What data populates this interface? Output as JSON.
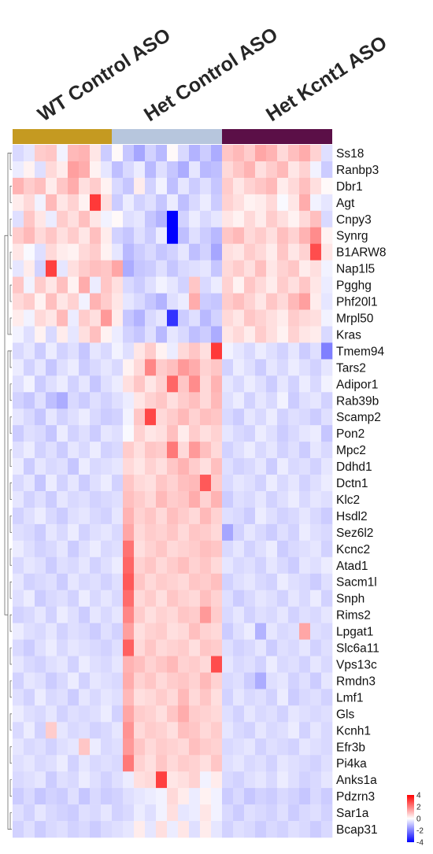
{
  "chart_data": {
    "type": "heatmap",
    "title": "",
    "groups": [
      {
        "name": "WT Control ASO",
        "color": "#c59a21",
        "columns": 9
      },
      {
        "name": "Het Control ASO",
        "color": "#b7c6dd",
        "columns": 10
      },
      {
        "name": "Het Kcnt1 ASO",
        "color": "#5b0f47",
        "columns": 10
      }
    ],
    "genes": [
      "Ss18",
      "Ranbp3",
      "Dbr1",
      "Agt",
      "Cnpy3",
      "Synrg",
      "B1ARW8",
      "Nap1l5",
      "Pgghg",
      "Phf20l1",
      "Mrpl50",
      "Kras",
      "Tmem94",
      "Tars2",
      "Adipor1",
      "Rab39b",
      "Scamp2",
      "Pon2",
      "Mpc2",
      "Ddhd1",
      "Dctn1",
      "Klc2",
      "Hsdl2",
      "Sez6l2",
      "Kcnc2",
      "Atad1",
      "Sacm1l",
      "Snph",
      "Rims2",
      "Lpgat1",
      "Slc6a11",
      "Vps13c",
      "Rmdn3",
      "Lmf1",
      "Gls",
      "Kcnh1",
      "Efr3b",
      "Pi4ka",
      "Anks1a",
      "Pdzrn3",
      "Sar1a",
      "Bcap31"
    ],
    "values": [
      [
        -0.6,
        -0.4,
        0.8,
        0.9,
        -0.2,
        1.1,
        1.2,
        0.4,
        -0.8,
        0.1,
        -0.9,
        -1.4,
        -0.7,
        -1.1,
        0.1,
        -0.6,
        -1.2,
        -0.8,
        -1.3,
        0.9,
        1.1,
        0.8,
        1.4,
        1.2,
        0.6,
        1.0,
        1.3,
        0.7,
        -0.5
      ],
      [
        -0.3,
        0.2,
        -0.5,
        0.6,
        0.3,
        1.5,
        1.3,
        0.2,
        -0.4,
        -1.0,
        -0.6,
        -0.3,
        -1.1,
        -0.5,
        -0.9,
        -1.3,
        -0.4,
        -1.1,
        -1.0,
        0.6,
        0.9,
        1.2,
        0.5,
        0.8,
        1.1,
        0.4,
        0.7,
        -0.2,
        -0.8
      ],
      [
        1.2,
        0.8,
        1.0,
        0.3,
        0.9,
        1.3,
        0.5,
        0.8,
        0.2,
        -0.6,
        -0.9,
        0.3,
        -0.7,
        -0.2,
        -1.0,
        -0.4,
        -0.8,
        -0.5,
        -0.9,
        0.8,
        0.4,
        0.7,
        0.9,
        1.1,
        0.3,
        0.6,
        1.0,
        0.5,
        0.1
      ],
      [
        0.3,
        0.6,
        -0.2,
        1.1,
        0.4,
        0.7,
        0.2,
        3.1,
        0.5,
        -0.8,
        -0.3,
        -0.7,
        -0.5,
        -0.9,
        -0.3,
        -1.0,
        -0.6,
        -0.3,
        -0.8,
        0.7,
        0.5,
        0.2,
        0.3,
        0.6,
        -0.1,
        0.4,
        1.3,
        -0.2,
        -0.4
      ],
      [
        -0.5,
        0.9,
        0.4,
        -0.3,
        0.8,
        0.5,
        1.0,
        0.4,
        -0.2,
        0.1,
        -0.5,
        -0.4,
        -0.9,
        -1.2,
        -4.0,
        -0.7,
        -0.3,
        -0.6,
        -0.4,
        0.4,
        0.2,
        0.6,
        0.3,
        0.8,
        0.5,
        0.2,
        0.6,
        1.0,
        -0.6
      ],
      [
        0.8,
        1.1,
        0.6,
        0.9,
        0.5,
        0.8,
        0.4,
        1.0,
        0.3,
        -0.7,
        -0.9,
        -0.5,
        -0.8,
        -0.3,
        -4.0,
        -1.0,
        -0.5,
        -0.8,
        -1.1,
        0.9,
        1.1,
        0.6,
        0.8,
        0.5,
        1.0,
        0.7,
        1.2,
        1.8,
        0.2
      ],
      [
        0.4,
        -0.1,
        -0.5,
        0.6,
        0.3,
        0.2,
        0.6,
        0.8,
        0.2,
        -0.4,
        -1.1,
        -0.8,
        -0.6,
        -0.9,
        -0.7,
        -0.4,
        -1.0,
        -0.7,
        -1.4,
        0.5,
        0.4,
        0.8,
        0.6,
        0.3,
        0.9,
        0.4,
        0.7,
        2.8,
        0.4
      ],
      [
        -0.4,
        0.3,
        -0.7,
        3.0,
        -0.4,
        0.5,
        0.8,
        1.0,
        0.9,
        1.4,
        -1.3,
        -0.9,
        -0.8,
        -0.5,
        -0.9,
        -0.6,
        -0.5,
        -0.4,
        -0.9,
        0.6,
        0.8,
        0.5,
        1.0,
        0.4,
        0.7,
        0.9,
        0.3,
        0.5,
        -0.2
      ],
      [
        0.9,
        -0.2,
        0.8,
        0.4,
        1.0,
        0.2,
        1.3,
        -0.3,
        0.9,
        0.5,
        -0.6,
        -0.8,
        -0.5,
        -0.2,
        -0.4,
        -0.7,
        0.9,
        -0.6,
        -0.3,
        0.7,
        0.2,
        0.9,
        0.6,
        0.3,
        0.8,
        0.5,
        0.9,
        0.4,
        -0.3
      ],
      [
        0.6,
        0.8,
        0.2,
        1.0,
        0.4,
        0.7,
        -0.2,
        1.2,
        0.8,
        0.4,
        -0.4,
        -0.6,
        -0.9,
        -1.2,
        -0.5,
        -0.3,
        1.3,
        -0.8,
        -0.9,
        0.8,
        1.0,
        0.7,
        0.4,
        0.9,
        0.6,
        1.1,
        1.5,
        0.3,
        -0.4
      ],
      [
        0.3,
        -0.2,
        0.6,
        0.4,
        1.1,
        -0.3,
        0.8,
        0.5,
        1.6,
        0.3,
        -0.9,
        -1.2,
        -0.6,
        -0.4,
        -3.2,
        -0.8,
        -0.5,
        -1.1,
        -0.7,
        0.6,
        0.4,
        0.9,
        0.7,
        0.5,
        0.3,
        0.8,
        0.6,
        0.5,
        -0.2
      ],
      [
        -0.2,
        -0.5,
        0.2,
        -0.6,
        0.3,
        -0.4,
        0.5,
        1.0,
        0.2,
        -0.3,
        -0.7,
        -0.9,
        -0.5,
        -1.1,
        -0.4,
        -0.6,
        -1.0,
        -0.8,
        -1.3,
        0.4,
        0.6,
        0.3,
        0.8,
        0.5,
        0.2,
        0.7,
        0.4,
        0.3,
        -0.6
      ],
      [
        -0.6,
        -0.4,
        -0.8,
        -0.3,
        -0.7,
        -0.5,
        -0.9,
        -0.4,
        -0.6,
        -0.2,
        -0.5,
        0.4,
        0.8,
        0.2,
        -0.3,
        0.6,
        0.9,
        0.5,
        3.1,
        -0.2,
        -0.4,
        -0.6,
        -0.3,
        -0.5,
        -0.7,
        -0.4,
        -0.8,
        -0.5,
        -2.0
      ],
      [
        -0.3,
        -0.7,
        -0.4,
        -0.9,
        -0.5,
        -0.3,
        -0.8,
        -0.6,
        -0.4,
        -0.6,
        0.2,
        0.6,
        1.9,
        0.8,
        1.0,
        1.6,
        1.3,
        0.7,
        0.9,
        -0.7,
        -0.3,
        -0.5,
        -0.8,
        -0.4,
        -0.6,
        -0.3,
        -0.5,
        -0.7,
        -0.4
      ],
      [
        -0.5,
        -0.2,
        -0.8,
        -0.5,
        -0.3,
        -0.7,
        -0.4,
        -0.9,
        -0.5,
        -0.3,
        0.5,
        0.9,
        0.4,
        0.7,
        2.4,
        0.9,
        1.8,
        0.6,
        1.2,
        -0.4,
        -0.6,
        -0.3,
        -0.5,
        -0.8,
        -0.4,
        -0.7,
        -0.3,
        -0.6,
        -0.2
      ],
      [
        -0.7,
        -0.9,
        -0.5,
        -1.0,
        -1.3,
        -0.6,
        -0.8,
        -0.5,
        -0.7,
        -0.5,
        -0.3,
        0.4,
        0.7,
        0.9,
        0.5,
        0.8,
        1.0,
        0.6,
        1.1,
        -0.5,
        -0.3,
        -0.7,
        -0.4,
        -0.6,
        -0.2,
        -0.8,
        -0.5,
        -0.4,
        -0.7
      ],
      [
        -0.4,
        -0.6,
        -0.9,
        -0.4,
        -0.7,
        -0.5,
        -0.3,
        -0.6,
        -0.8,
        -0.7,
        -0.2,
        0.9,
        2.9,
        0.6,
        0.8,
        1.1,
        0.7,
        1.0,
        0.9,
        -0.6,
        -0.8,
        -0.4,
        -0.6,
        -0.3,
        -0.7,
        -0.5,
        -0.6,
        -0.8,
        -0.5
      ],
      [
        -0.8,
        -0.5,
        -0.6,
        -0.9,
        -0.3,
        -0.7,
        -0.5,
        -0.8,
        -0.4,
        -0.5,
        -0.1,
        0.7,
        0.4,
        0.5,
        1.0,
        0.3,
        0.8,
        0.5,
        0.7,
        -0.4,
        -0.6,
        -0.7,
        -0.3,
        -0.5,
        -0.8,
        -0.6,
        -0.4,
        -0.3,
        -0.9
      ],
      [
        -0.5,
        -0.3,
        -0.7,
        -0.5,
        -0.8,
        -0.4,
        -0.6,
        -0.3,
        -0.7,
        -0.6,
        0.8,
        0.5,
        0.9,
        0.8,
        2.1,
        0.6,
        1.6,
        1.0,
        0.6,
        -0.7,
        -0.5,
        -0.3,
        -0.6,
        -0.4,
        -0.7,
        -0.5,
        -0.8,
        -0.4,
        -0.6
      ],
      [
        -0.3,
        -0.8,
        -0.4,
        -0.6,
        -0.5,
        -0.9,
        -0.3,
        -0.6,
        -0.5,
        -0.4,
        0.6,
        0.4,
        0.7,
        0.5,
        0.9,
        1.2,
        0.8,
        0.5,
        1.0,
        -0.5,
        -0.7,
        -0.6,
        -0.4,
        -0.8,
        -0.3,
        -0.6,
        -0.5,
        -0.7,
        -0.4
      ],
      [
        -0.6,
        -0.4,
        -0.9,
        -0.3,
        -0.7,
        -0.4,
        -0.8,
        -0.5,
        -0.3,
        -0.7,
        0.9,
        0.6,
        0.5,
        0.9,
        0.7,
        1.0,
        1.1,
        2.6,
        0.8,
        -0.6,
        -0.4,
        -0.5,
        -0.7,
        -0.3,
        -0.6,
        -0.4,
        -0.7,
        -0.5,
        -0.3
      ],
      [
        -0.4,
        -0.7,
        -0.5,
        -0.8,
        -0.4,
        -0.6,
        -0.5,
        -0.7,
        -0.6,
        -0.5,
        1.0,
        0.8,
        0.6,
        1.1,
        0.8,
        0.9,
        1.3,
        0.7,
        1.2,
        -0.8,
        -0.5,
        -0.6,
        -0.4,
        -0.7,
        -0.5,
        -0.3,
        -0.6,
        -0.4,
        -0.5
      ],
      [
        -0.7,
        -0.5,
        -0.3,
        -0.6,
        -0.8,
        -0.5,
        -0.4,
        -0.6,
        -0.7,
        -0.4,
        1.2,
        0.7,
        0.9,
        0.6,
        1.0,
        0.8,
        0.6,
        1.1,
        0.7,
        -0.5,
        -0.6,
        -0.8,
        -0.3,
        -0.5,
        -0.7,
        -0.6,
        -0.4,
        -0.6,
        -0.8
      ],
      [
        -0.5,
        -0.6,
        -0.8,
        -0.4,
        -0.6,
        -0.3,
        -0.7,
        -0.5,
        -0.4,
        -0.6,
        1.4,
        0.6,
        0.8,
        0.7,
        0.9,
        0.6,
        0.9,
        0.8,
        0.6,
        -1.4,
        -0.7,
        -0.4,
        -0.6,
        -0.8,
        -0.5,
        -0.7,
        -0.3,
        -0.5,
        -0.6
      ],
      [
        -0.3,
        -0.5,
        -0.7,
        -0.6,
        -0.4,
        -0.8,
        -0.5,
        -0.3,
        -0.6,
        -0.5,
        2.2,
        0.5,
        0.7,
        0.9,
        0.6,
        0.7,
        0.8,
        1.0,
        0.9,
        -0.6,
        -0.4,
        -0.7,
        -0.5,
        -0.3,
        -0.8,
        -0.6,
        -0.5,
        -0.4,
        -0.7
      ],
      [
        -0.6,
        -0.4,
        -0.5,
        -0.8,
        -0.5,
        -0.6,
        -0.4,
        -0.7,
        -0.5,
        -0.3,
        2.4,
        0.7,
        0.9,
        0.6,
        0.8,
        1.0,
        0.7,
        0.9,
        0.6,
        -0.4,
        -0.6,
        -0.5,
        -0.7,
        -0.4,
        -0.6,
        -0.8,
        -0.4,
        -0.5,
        -0.3
      ],
      [
        -0.4,
        -0.7,
        -0.6,
        -0.5,
        -0.8,
        -0.4,
        -0.6,
        -0.5,
        -0.7,
        -0.5,
        2.6,
        0.9,
        0.6,
        0.8,
        0.7,
        0.6,
        0.9,
        0.8,
        1.0,
        -0.7,
        -0.5,
        -0.4,
        -0.6,
        -0.7,
        -0.3,
        -0.5,
        -0.6,
        -0.8,
        -0.5
      ],
      [
        -0.5,
        -0.3,
        -0.8,
        -0.6,
        -0.5,
        -0.7,
        -0.3,
        -0.6,
        -0.4,
        -0.6,
        2.3,
        0.6,
        0.8,
        0.5,
        0.9,
        0.7,
        0.6,
        1.0,
        0.7,
        -0.5,
        -0.8,
        -0.6,
        -0.4,
        -0.5,
        -0.7,
        -0.4,
        -0.6,
        -0.3,
        -0.7
      ],
      [
        -0.7,
        -0.6,
        -0.4,
        -0.7,
        -0.3,
        -0.5,
        -0.8,
        -0.4,
        -0.6,
        -0.4,
        1.9,
        0.8,
        0.5,
        0.7,
        0.6,
        0.9,
        0.8,
        1.6,
        0.8,
        -0.6,
        -0.4,
        -0.7,
        -0.5,
        -0.6,
        -0.4,
        -0.7,
        -0.5,
        -0.6,
        -0.4
      ],
      [
        -0.3,
        -0.5,
        -0.6,
        -0.4,
        -0.7,
        -0.5,
        -0.6,
        -0.8,
        -0.5,
        -0.7,
        1.5,
        0.5,
        0.7,
        0.8,
        0.5,
        0.6,
        1.0,
        0.7,
        0.6,
        -0.8,
        -0.5,
        -0.3,
        -1.2,
        -0.4,
        -0.6,
        -0.5,
        1.4,
        -0.5,
        -0.6
      ],
      [
        -0.6,
        -0.8,
        -0.5,
        -0.3,
        -0.6,
        -0.4,
        -0.5,
        -0.6,
        -0.7,
        -0.5,
        2.5,
        0.6,
        0.9,
        0.6,
        0.7,
        0.8,
        0.5,
        0.9,
        0.8,
        -0.5,
        -0.7,
        -0.6,
        -0.4,
        -0.8,
        -0.5,
        -0.6,
        -0.4,
        -0.7,
        -0.5
      ],
      [
        -0.4,
        -0.6,
        -0.7,
        -0.5,
        -0.4,
        -0.7,
        -0.3,
        -0.5,
        -0.6,
        -0.4,
        1.2,
        1.0,
        0.7,
        0.9,
        1.1,
        0.7,
        0.8,
        0.6,
        2.8,
        -0.4,
        -0.6,
        -0.5,
        -0.7,
        -0.3,
        -0.6,
        -0.5,
        -0.7,
        -0.4,
        -0.6
      ],
      [
        -0.7,
        -0.4,
        -0.5,
        -0.8,
        -0.6,
        -0.3,
        -0.7,
        -0.4,
        -0.5,
        -0.6,
        1.3,
        0.7,
        0.9,
        0.6,
        0.8,
        0.9,
        0.7,
        1.1,
        0.7,
        -0.6,
        -0.5,
        -0.8,
        -1.3,
        -0.5,
        -0.4,
        -0.7,
        -0.5,
        -0.8,
        -0.4
      ],
      [
        -0.5,
        -0.7,
        -0.3,
        -0.6,
        -0.5,
        -0.8,
        -0.4,
        -0.6,
        -0.4,
        -0.5,
        1.1,
        0.5,
        0.6,
        0.8,
        0.6,
        1.1,
        0.6,
        0.9,
        0.5,
        -0.7,
        -0.4,
        -0.6,
        -0.5,
        -0.7,
        -0.3,
        -0.8,
        -0.6,
        -0.5,
        -0.7
      ],
      [
        -0.3,
        -0.5,
        -0.6,
        -0.4,
        -0.7,
        -0.5,
        -0.6,
        -0.5,
        -0.3,
        -0.7,
        1.4,
        0.8,
        0.7,
        0.5,
        0.9,
        1.3,
        0.8,
        0.7,
        0.6,
        -0.5,
        -0.7,
        -0.4,
        -0.6,
        -0.5,
        -0.7,
        -0.4,
        -0.5,
        -0.6,
        -0.5
      ],
      [
        -0.6,
        -0.3,
        -0.7,
        0.8,
        -0.4,
        -0.6,
        -0.5,
        -0.7,
        -0.6,
        -0.4,
        1.7,
        0.6,
        0.8,
        0.7,
        0.5,
        1.0,
        0.9,
        0.6,
        0.8,
        -0.4,
        -0.6,
        -0.7,
        -0.4,
        -0.6,
        -0.5,
        -0.3,
        -0.7,
        -0.4,
        -0.6
      ],
      [
        -0.4,
        -0.6,
        -0.5,
        -0.7,
        -0.5,
        -0.4,
        0.9,
        -0.3,
        -0.6,
        -0.5,
        1.6,
        0.9,
        0.6,
        0.8,
        0.7,
        0.6,
        1.0,
        0.8,
        0.7,
        -0.6,
        -0.5,
        -0.4,
        -0.7,
        -0.5,
        -0.6,
        -0.7,
        -0.4,
        -0.5,
        -0.6
      ],
      [
        -0.5,
        -0.4,
        -0.6,
        -0.5,
        -0.3,
        -0.7,
        -0.4,
        -0.6,
        -0.5,
        -0.6,
        2.1,
        0.7,
        0.5,
        0.9,
        0.6,
        0.8,
        0.7,
        0.5,
        0.9,
        -0.5,
        -0.4,
        -0.6,
        -0.5,
        -0.7,
        -0.4,
        -0.5,
        -0.6,
        -0.7,
        -0.5
      ],
      [
        -0.6,
        -0.5,
        -0.4,
        -0.8,
        -0.5,
        -0.6,
        -0.3,
        -0.5,
        -0.7,
        -0.5,
        -0.3,
        0.5,
        0.6,
        3.0,
        0.4,
        0.5,
        0.7,
        -0.2,
        0.3,
        -0.6,
        -0.7,
        -0.5,
        -0.4,
        -0.6,
        -0.3,
        -0.5,
        -0.7,
        -0.6,
        -0.4
      ],
      [
        -0.8,
        -0.6,
        -0.9,
        -0.7,
        -0.8,
        -0.5,
        -0.9,
        -0.6,
        -0.8,
        -0.7,
        -0.5,
        -0.4,
        -0.3,
        -0.2,
        0.6,
        0.3,
        -0.3,
        0.2,
        -0.2,
        -0.8,
        -0.6,
        -0.9,
        -0.7,
        -0.8,
        -0.6,
        -0.7,
        -0.9,
        -0.6,
        -0.8
      ],
      [
        -0.5,
        -0.7,
        -0.4,
        -0.6,
        -0.7,
        -0.8,
        -0.5,
        -0.6,
        -0.4,
        -0.7,
        -0.6,
        -0.3,
        -0.5,
        -0.2,
        0.5,
        -0.4,
        -0.3,
        0.4,
        -0.2,
        -0.6,
        -0.8,
        -0.5,
        -0.6,
        -0.7,
        -0.5,
        -0.8,
        -0.6,
        -0.5,
        -0.7
      ],
      [
        -0.7,
        -0.5,
        -0.8,
        -0.6,
        -0.5,
        -0.7,
        -0.6,
        -0.8,
        -0.6,
        -0.5,
        -0.4,
        0.3,
        -0.4,
        0.5,
        -0.3,
        0.4,
        -0.5,
        0.3,
        -0.4,
        -0.7,
        -0.5,
        -0.6,
        -0.8,
        -0.6,
        -0.7,
        -0.5,
        -0.6,
        -0.8,
        -0.6
      ]
    ],
    "color_scale": {
      "min": -4,
      "max": 4,
      "low": "#0000ff",
      "mid": "#ffffff",
      "high": "#ff0000"
    },
    "legend": {
      "ticks": [
        4,
        2,
        0,
        -2,
        -4
      ],
      "placement": "bottom-right"
    },
    "dendrogram": "rows, left"
  }
}
